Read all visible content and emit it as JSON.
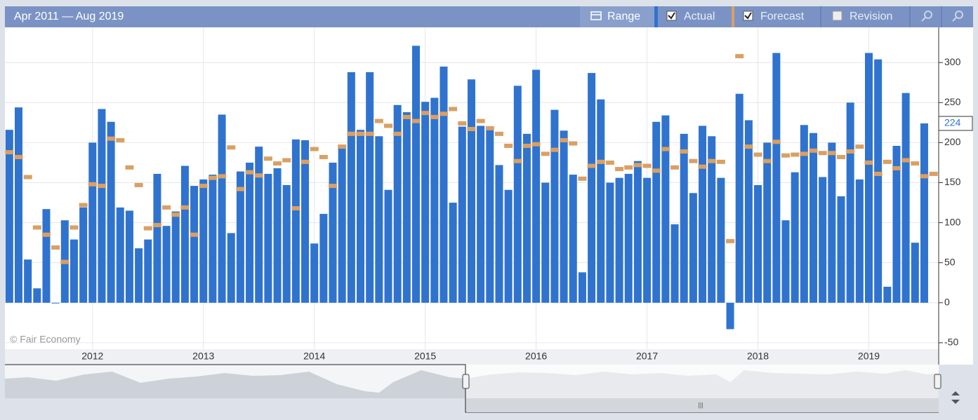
{
  "chart_data": {
    "type": "bar",
    "title": "Apr 2011 — Aug 2019",
    "credit": "© Fair Economy",
    "range_button": "Range",
    "revision_toggle": "Revision",
    "x": [
      "2011-04",
      "2011-05",
      "2011-06",
      "2011-07",
      "2011-08",
      "2011-09",
      "2011-10",
      "2011-11",
      "2011-12",
      "2012-01",
      "2012-02",
      "2012-03",
      "2012-04",
      "2012-05",
      "2012-06",
      "2012-07",
      "2012-08",
      "2012-09",
      "2012-10",
      "2012-11",
      "2012-12",
      "2013-01",
      "2013-02",
      "2013-03",
      "2013-04",
      "2013-05",
      "2013-06",
      "2013-07",
      "2013-08",
      "2013-09",
      "2013-10",
      "2013-11",
      "2013-12",
      "2014-01",
      "2014-02",
      "2014-03",
      "2014-04",
      "2014-05",
      "2014-06",
      "2014-07",
      "2014-08",
      "2014-09",
      "2014-10",
      "2014-11",
      "2014-12",
      "2015-01",
      "2015-02",
      "2015-03",
      "2015-04",
      "2015-05",
      "2015-06",
      "2015-07",
      "2015-08",
      "2015-09",
      "2015-10",
      "2015-11",
      "2015-12",
      "2016-01",
      "2016-02",
      "2016-03",
      "2016-04",
      "2016-05",
      "2016-06",
      "2016-07",
      "2016-08",
      "2016-09",
      "2016-10",
      "2016-11",
      "2016-12",
      "2017-01",
      "2017-02",
      "2017-03",
      "2017-04",
      "2017-05",
      "2017-06",
      "2017-07",
      "2017-08",
      "2017-09",
      "2017-10",
      "2017-11",
      "2017-12",
      "2018-01",
      "2018-02",
      "2018-03",
      "2018-04",
      "2018-05",
      "2018-06",
      "2018-07",
      "2018-08",
      "2018-09",
      "2018-10",
      "2018-11",
      "2018-12",
      "2019-01",
      "2019-02",
      "2019-03",
      "2019-04",
      "2019-05",
      "2019-06",
      "2019-07",
      "2019-08"
    ],
    "series": [
      {
        "name": "Actual",
        "color": "#2f73cf",
        "mark": "bar",
        "values": [
          216,
          244,
          54,
          18,
          117,
          0,
          103,
          79,
          119,
          200,
          242,
          226,
          119,
          115,
          68,
          79,
          161,
          96,
          114,
          171,
          146,
          154,
          160,
          235,
          87,
          164,
          175,
          195,
          161,
          168,
          147,
          204,
          203,
          74,
          111,
          175,
          194,
          288,
          216,
          288,
          208,
          141,
          247,
          238,
          321,
          251,
          256,
          295,
          125,
          220,
          279,
          221,
          219,
          172,
          141,
          271,
          211,
          291,
          150,
          241,
          215,
          160,
          38,
          287,
          254,
          150,
          156,
          161,
          177,
          156,
          226,
          234,
          98,
          211,
          137,
          221,
          208,
          156,
          -33,
          261,
          228,
          147,
          200,
          312,
          103,
          163,
          222,
          212,
          157,
          200,
          133,
          250,
          154,
          312,
          304,
          20,
          196,
          262,
          75,
          224,
          null
        ]
      },
      {
        "name": "Forecast",
        "color": "#d9a064",
        "mark": "dash",
        "values": [
          188,
          182,
          157,
          94,
          85,
          69,
          51,
          94,
          122,
          148,
          146,
          205,
          203,
          169,
          147,
          93,
          97,
          119,
          110,
          119,
          85,
          146,
          156,
          158,
          194,
          142,
          163,
          159,
          180,
          174,
          178,
          118,
          176,
          192,
          182,
          146,
          195,
          211,
          211,
          211,
          227,
          221,
          211,
          232,
          227,
          237,
          232,
          236,
          242,
          224,
          217,
          227,
          218,
          211,
          196,
          177,
          196,
          198,
          186,
          191,
          203,
          199,
          155,
          171,
          176,
          175,
          167,
          169,
          172,
          171,
          165,
          192,
          169,
          189,
          177,
          170,
          177,
          176,
          77,
          308,
          195,
          185,
          177,
          201,
          184,
          185,
          186,
          190,
          187,
          187,
          182,
          189,
          195,
          175,
          161,
          176,
          168,
          178,
          174,
          158,
          161
        ]
      }
    ],
    "xlim": [
      2011.21,
      2019.63
    ],
    "xticks": [
      2012,
      2013,
      2014,
      2015,
      2016,
      2017,
      2018,
      2019
    ],
    "ylim": [
      -58,
      344
    ],
    "yticks": [
      -50,
      0,
      50,
      100,
      150,
      200,
      250,
      300
    ],
    "grid": true
  }
}
